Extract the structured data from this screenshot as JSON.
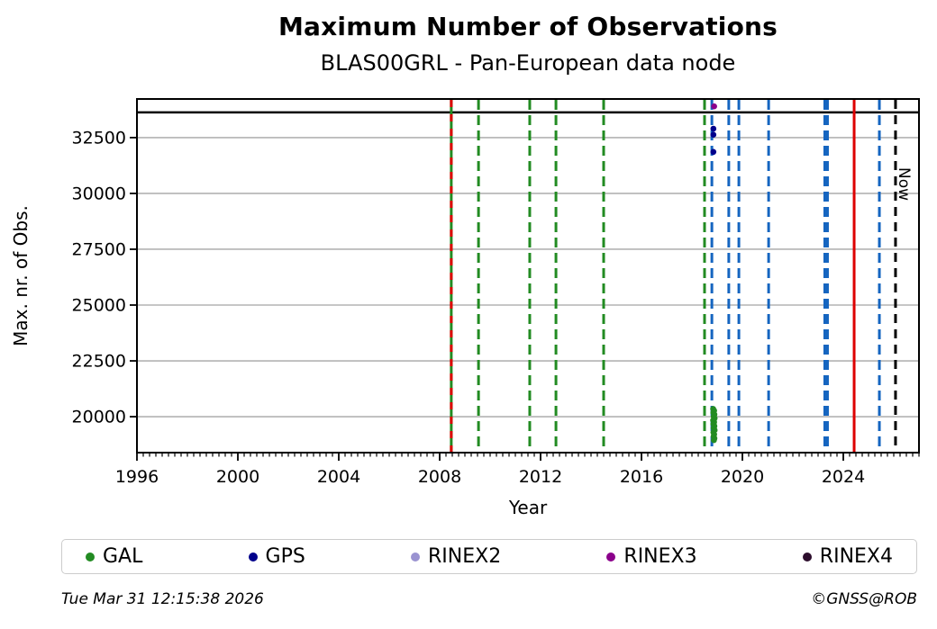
{
  "title": "Maximum Number of Observations",
  "subtitle": "BLAS00GRL - Pan-European data node",
  "footer": {
    "timestamp": "Tue Mar 31 12:15:38 2026",
    "credit": "©GNSS@ROB"
  },
  "chart_data": {
    "type": "scatter",
    "title": "Maximum Number of Observations",
    "subtitle": "BLAS00GRL - Pan-European data node",
    "xlabel": "Year",
    "ylabel": "Max. nr. of Obs.",
    "xlim": [
      1996,
      2027
    ],
    "ylim": [
      18390,
      34230
    ],
    "xticks": [
      1996,
      2000,
      2004,
      2008,
      2012,
      2016,
      2020,
      2024
    ],
    "yticks": [
      20000,
      22500,
      25000,
      27500,
      30000,
      32500
    ],
    "minor_xtick_step": 0.25,
    "grid": "horizontal-only",
    "grid_color": "#b3b3b3",
    "now_label": "Now",
    "now_line_year": 2026.07,
    "palette": {
      "green": "#228B22",
      "blue": "#1565c0",
      "red": "#dd0000",
      "black": "#000000"
    },
    "reference_lines": {
      "horizontal": [
        {
          "value": 33630,
          "color": "black",
          "style": "solid"
        }
      ],
      "vertical": [
        {
          "year": 2008.46,
          "color": "green",
          "style": "solid"
        },
        {
          "year": 2008.46,
          "color": "red",
          "style": "dashed"
        },
        {
          "year": 2009.54,
          "color": "green",
          "style": "dashed"
        },
        {
          "year": 2011.57,
          "color": "green",
          "style": "dashed"
        },
        {
          "year": 2012.61,
          "color": "green",
          "style": "dashed"
        },
        {
          "year": 2014.5,
          "color": "green",
          "style": "dashed"
        },
        {
          "year": 2018.5,
          "color": "green",
          "style": "dashed"
        },
        {
          "year": 2018.79,
          "color": "blue",
          "style": "dashed"
        },
        {
          "year": 2019.46,
          "color": "blue",
          "style": "dashed"
        },
        {
          "year": 2019.86,
          "color": "blue",
          "style": "dashed"
        },
        {
          "year": 2021.04,
          "color": "blue",
          "style": "dashed"
        },
        {
          "year": 2023.32,
          "color": "blue",
          "style": "dashed",
          "width": 6
        },
        {
          "year": 2024.43,
          "color": "red",
          "style": "solid"
        },
        {
          "year": 2025.43,
          "color": "blue",
          "style": "dashed"
        },
        {
          "year": 2026.07,
          "color": "black",
          "style": "dashed",
          "label": "Now"
        }
      ]
    },
    "series": [
      {
        "name": "GAL",
        "color": "#228B22",
        "points": [
          [
            2018.84,
            20350
          ],
          [
            2018.88,
            20270
          ],
          [
            2018.85,
            20180
          ],
          [
            2018.89,
            20100
          ],
          [
            2018.86,
            20010
          ],
          [
            2018.9,
            19930
          ],
          [
            2018.84,
            19840
          ],
          [
            2018.88,
            19760
          ],
          [
            2018.85,
            19670
          ],
          [
            2018.89,
            19580
          ],
          [
            2018.86,
            19490
          ],
          [
            2018.9,
            19400
          ],
          [
            2018.85,
            19300
          ],
          [
            2018.88,
            19210
          ],
          [
            2018.86,
            19120
          ],
          [
            2018.89,
            19030
          ],
          [
            2018.87,
            18950
          ]
        ]
      },
      {
        "name": "GPS",
        "color": "#00008b",
        "points": [
          [
            2018.85,
            32900
          ],
          [
            2018.85,
            32630
          ],
          [
            2018.85,
            31860
          ]
        ]
      },
      {
        "name": "RINEX2",
        "color": "#9a93d1",
        "points": []
      },
      {
        "name": "RINEX3",
        "color": "#8b008b",
        "points": [
          [
            2018.88,
            33900
          ]
        ]
      },
      {
        "name": "RINEX4",
        "color": "#2d0e2d",
        "points": []
      }
    ],
    "legend": [
      "GAL",
      "GPS",
      "RINEX2",
      "RINEX3",
      "RINEX4"
    ]
  }
}
